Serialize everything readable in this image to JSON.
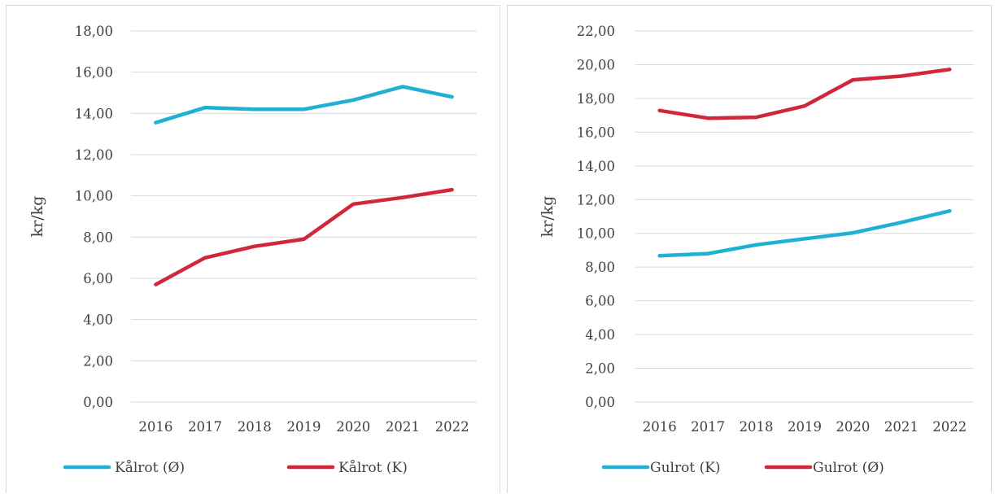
{
  "chart_data": [
    {
      "type": "line",
      "ylabel": "kr/kg",
      "ylim": [
        0,
        18
      ],
      "ytick_step": 2,
      "ytick_labels": [
        "0,00",
        "2,00",
        "4,00",
        "6,00",
        "8,00",
        "10,00",
        "12,00",
        "14,00",
        "16,00",
        "18,00"
      ],
      "categories": [
        "2016",
        "2017",
        "2018",
        "2019",
        "2020",
        "2021",
        "2022"
      ],
      "grid": true,
      "legend_position": "bottom",
      "series": [
        {
          "name": "Kålrot (Ø)",
          "color": "#1fb1d4",
          "values": [
            13.55,
            14.28,
            14.2,
            14.2,
            14.65,
            15.3,
            14.8
          ]
        },
        {
          "name": "Kålrot (K)",
          "color": "#d0283a",
          "values": [
            5.7,
            7.0,
            7.55,
            7.9,
            9.6,
            9.92,
            10.3
          ]
        }
      ]
    },
    {
      "type": "line",
      "ylabel": "kr/kg",
      "ylim": [
        0,
        22
      ],
      "ytick_step": 2,
      "ytick_labels": [
        "0,00",
        "2,00",
        "4,00",
        "6,00",
        "8,00",
        "10,00",
        "12,00",
        "14,00",
        "16,00",
        "18,00",
        "20,00",
        "22,00"
      ],
      "categories": [
        "2016",
        "2017",
        "2018",
        "2019",
        "2020",
        "2021",
        "2022"
      ],
      "grid": true,
      "legend_position": "bottom",
      "series": [
        {
          "name": "Gulrot (K)",
          "color": "#1fb1d4",
          "values": [
            8.67,
            8.8,
            9.32,
            9.68,
            10.03,
            10.65,
            11.33
          ]
        },
        {
          "name": "Gulrot (Ø)",
          "color": "#d0283a",
          "values": [
            17.28,
            16.83,
            16.88,
            17.55,
            19.1,
            19.32,
            19.72
          ]
        }
      ]
    }
  ]
}
